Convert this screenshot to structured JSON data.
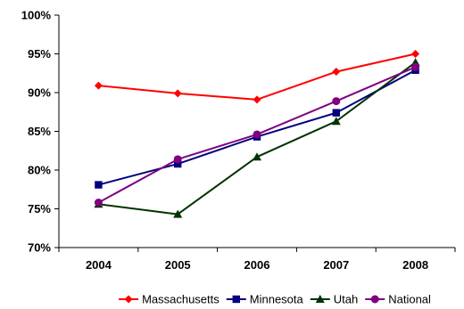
{
  "chart_data": {
    "type": "line",
    "x": [
      "2004",
      "2005",
      "2006",
      "2007",
      "2008"
    ],
    "y_ticks": [
      "70%",
      "75%",
      "80%",
      "85%",
      "90%",
      "95%",
      "100%"
    ],
    "ylim": [
      70,
      100
    ],
    "legend_position": "bottom",
    "grid": false,
    "series": [
      {
        "name": "Massachusetts",
        "color": "#ff0000",
        "marker": "diamond",
        "values": [
          90.9,
          89.9,
          89.1,
          92.7,
          95.0
        ]
      },
      {
        "name": "Minnesota",
        "color": "#000080",
        "marker": "square",
        "values": [
          78.1,
          80.8,
          84.3,
          87.4,
          92.9
        ]
      },
      {
        "name": "Utah",
        "color": "#003300",
        "marker": "triangle",
        "values": [
          75.6,
          74.3,
          81.7,
          86.3,
          93.9
        ]
      },
      {
        "name": "National",
        "color": "#800080",
        "marker": "circle",
        "values": [
          75.8,
          81.4,
          84.6,
          88.9,
          93.3
        ]
      }
    ]
  }
}
